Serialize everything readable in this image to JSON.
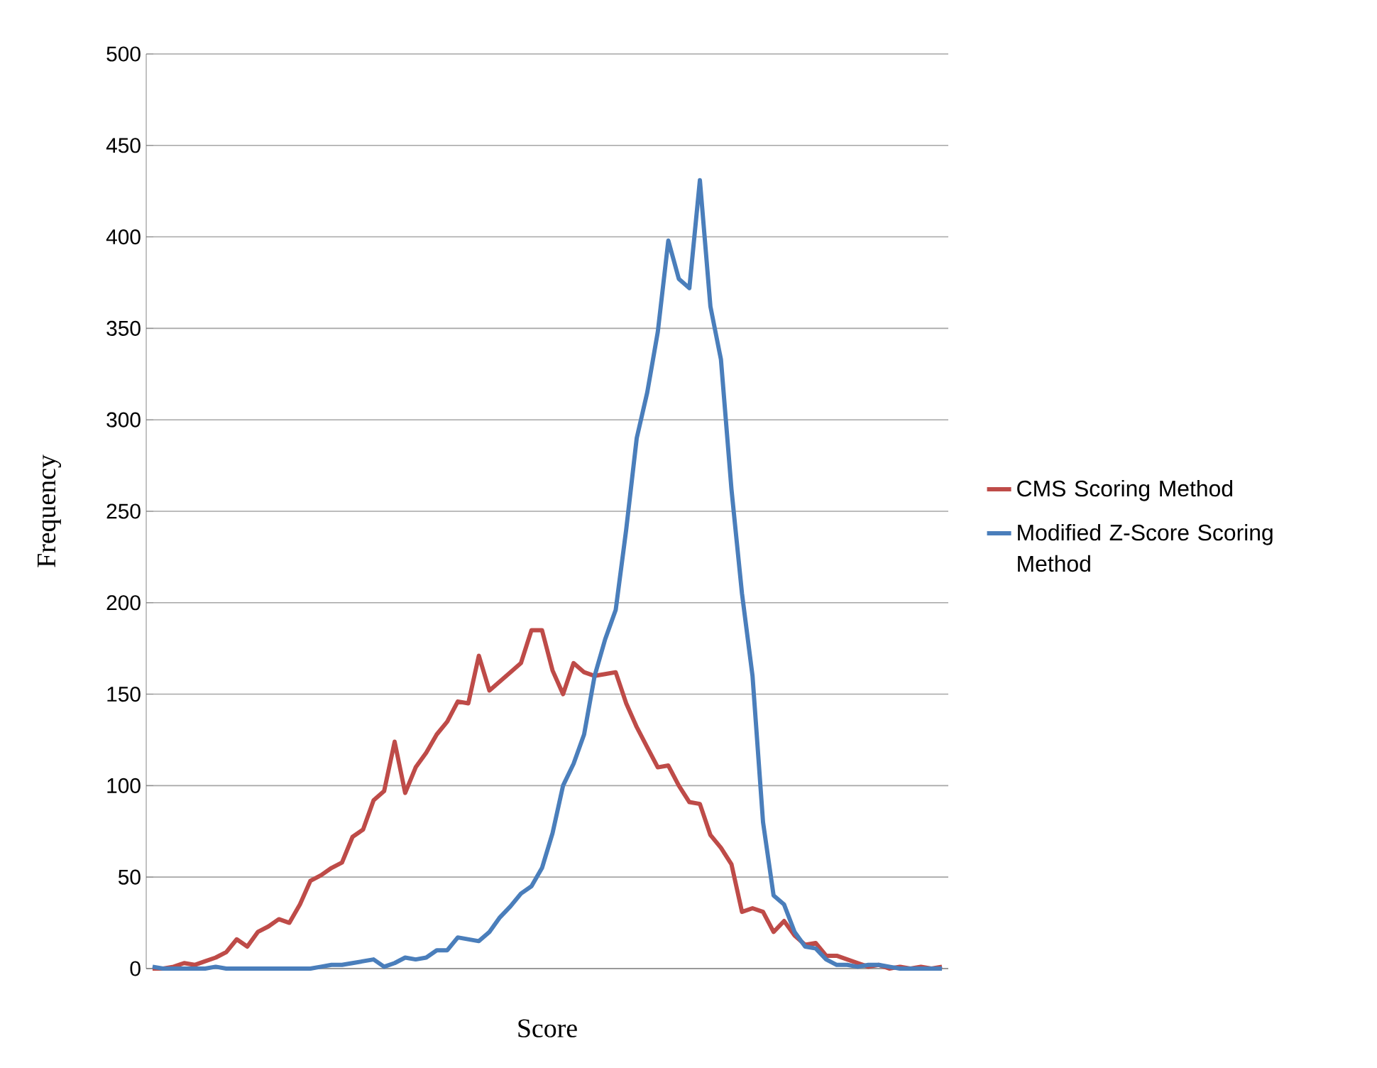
{
  "chart_data": {
    "type": "line",
    "xlabel": "Score",
    "ylabel": "Frequency",
    "categories": [
      null,
      null,
      null,
      null,
      null,
      null,
      null,
      null,
      null,
      null,
      null,
      null,
      null,
      null,
      null,
      null,
      null,
      null,
      null,
      null,
      null,
      null,
      null,
      null,
      null,
      null,
      null,
      null,
      null,
      null,
      null,
      null,
      null,
      null,
      null,
      null,
      null,
      null,
      null,
      null,
      null,
      null,
      null,
      null,
      null,
      null,
      null,
      null,
      null,
      null,
      null,
      null,
      null,
      null,
      null,
      null,
      null,
      null,
      null,
      null,
      null,
      null,
      null,
      null,
      null,
      null,
      null,
      null,
      null,
      null,
      null,
      null,
      null,
      null,
      null,
      null
    ],
    "series": [
      {
        "name": "CMS Scoring Method",
        "color": "#be4b48",
        "values": [
          0,
          0,
          1,
          3,
          2,
          4,
          6,
          9,
          16,
          12,
          20,
          23,
          27,
          25,
          35,
          48,
          51,
          55,
          58,
          72,
          76,
          92,
          97,
          124,
          96,
          110,
          118,
          128,
          135,
          146,
          145,
          171,
          152,
          157,
          162,
          167,
          185,
          185,
          163,
          150,
          167,
          162,
          160,
          161,
          162,
          145,
          132,
          121,
          110,
          111,
          100,
          91,
          90,
          73,
          66,
          57,
          31,
          33,
          31,
          20,
          26,
          18,
          13,
          14,
          7,
          7,
          5,
          3,
          1,
          2,
          0,
          1,
          0,
          1,
          0,
          1
        ]
      },
      {
        "name": "Modified Z-Score Scoring Method",
        "color": "#4a7ebb",
        "values": [
          1,
          0,
          0,
          0,
          0,
          0,
          1,
          0,
          0,
          0,
          0,
          0,
          0,
          0,
          0,
          0,
          1,
          2,
          2,
          3,
          4,
          5,
          1,
          3,
          6,
          5,
          6,
          10,
          10,
          17,
          16,
          15,
          20,
          28,
          34,
          41,
          45,
          55,
          74,
          100,
          112,
          128,
          160,
          180,
          196,
          240,
          290,
          315,
          348,
          398,
          377,
          372,
          431,
          362,
          333,
          262,
          205,
          160,
          80,
          40,
          35,
          20,
          12,
          11,
          5,
          2,
          2,
          1,
          2,
          2,
          1,
          0,
          0,
          0,
          0,
          0
        ]
      }
    ],
    "ylim": [
      0,
      500
    ],
    "yticks": [
      0,
      50,
      100,
      150,
      200,
      250,
      300,
      350,
      400,
      450,
      500
    ],
    "grid": "y",
    "legend": "right",
    "marker": "none",
    "line_style": "solid"
  }
}
